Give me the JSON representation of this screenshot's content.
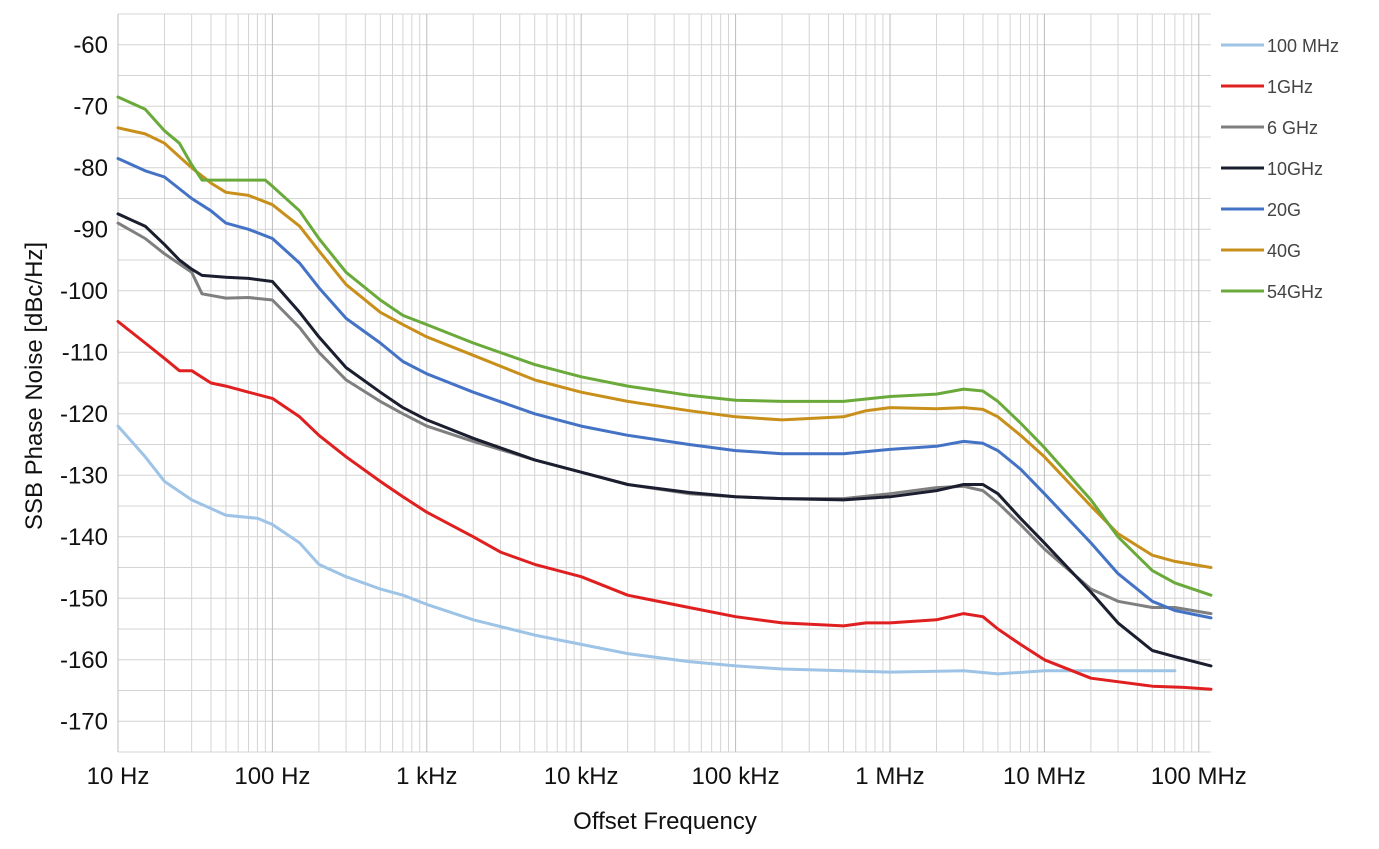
{
  "chart_data": {
    "type": "line",
    "title": "",
    "xlabel": "Offset Frequency",
    "ylabel": "SSB Phase Noise [dBc/Hz]",
    "x_scale": "log",
    "xlim": [
      10,
      120000000
    ],
    "ylim": [
      -175,
      -55
    ],
    "grid": true,
    "legend_position": "right",
    "y_ticks": [
      -60,
      -70,
      -80,
      -90,
      -100,
      -110,
      -120,
      -130,
      -140,
      -150,
      -160,
      -170
    ],
    "y_tick_labels": [
      "-60",
      "-70",
      "-80",
      "-90",
      "-100",
      "-110",
      "-120",
      "-130",
      "-140",
      "-150",
      "-160",
      "-170"
    ],
    "x_ticks": [
      10,
      100,
      1000,
      10000,
      100000,
      1000000,
      10000000,
      100000000
    ],
    "x_tick_labels": [
      "10 Hz",
      "100 Hz",
      "1 kHz",
      "10 kHz",
      "100 kHz",
      "1 MHz",
      "10 MHz",
      "100 MHz"
    ],
    "series": [
      {
        "name": "100 MHz",
        "color": "#9dc3e6",
        "points": [
          [
            10,
            -122
          ],
          [
            15,
            -127
          ],
          [
            20,
            -131
          ],
          [
            30,
            -134
          ],
          [
            50,
            -136.5
          ],
          [
            80,
            -137
          ],
          [
            100,
            -138
          ],
          [
            150,
            -141
          ],
          [
            200,
            -144.5
          ],
          [
            300,
            -146.5
          ],
          [
            500,
            -148.5
          ],
          [
            700,
            -149.5
          ],
          [
            1000,
            -151
          ],
          [
            2000,
            -153.5
          ],
          [
            5000,
            -156
          ],
          [
            10000,
            -157.5
          ],
          [
            20000,
            -159
          ],
          [
            50000,
            -160.3
          ],
          [
            100000,
            -161
          ],
          [
            200000,
            -161.5
          ],
          [
            500000,
            -161.8
          ],
          [
            1000000,
            -162
          ],
          [
            3000000,
            -161.8
          ],
          [
            5000000,
            -162.3
          ],
          [
            10000000,
            -161.8
          ],
          [
            20000000,
            -161.8
          ],
          [
            50000000,
            -161.8
          ],
          [
            70000000,
            -161.8
          ]
        ]
      },
      {
        "name": "1GHz",
        "color": "#e02020",
        "points": [
          [
            10,
            -105
          ],
          [
            15,
            -108.5
          ],
          [
            20,
            -111
          ],
          [
            25,
            -113
          ],
          [
            30,
            -113
          ],
          [
            40,
            -115
          ],
          [
            50,
            -115.5
          ],
          [
            70,
            -116.5
          ],
          [
            100,
            -117.5
          ],
          [
            150,
            -120.5
          ],
          [
            200,
            -123.5
          ],
          [
            300,
            -127
          ],
          [
            500,
            -131
          ],
          [
            700,
            -133.5
          ],
          [
            1000,
            -136
          ],
          [
            2000,
            -140
          ],
          [
            3000,
            -142.5
          ],
          [
            5000,
            -144.5
          ],
          [
            10000,
            -146.5
          ],
          [
            20000,
            -149.5
          ],
          [
            50000,
            -151.5
          ],
          [
            100000,
            -153
          ],
          [
            200000,
            -154
          ],
          [
            500000,
            -154.5
          ],
          [
            700000,
            -154
          ],
          [
            1000000,
            -154
          ],
          [
            2000000,
            -153.5
          ],
          [
            3000000,
            -152.5
          ],
          [
            4000000,
            -153
          ],
          [
            5000000,
            -155
          ],
          [
            7000000,
            -157.5
          ],
          [
            10000000,
            -160
          ],
          [
            20000000,
            -163
          ],
          [
            50000000,
            -164.3
          ],
          [
            80000000,
            -164.5
          ],
          [
            120000000,
            -164.8
          ]
        ]
      },
      {
        "name": "6 GHz",
        "color": "#7f7f7f",
        "points": [
          [
            10,
            -89
          ],
          [
            15,
            -91.5
          ],
          [
            20,
            -94
          ],
          [
            30,
            -97
          ],
          [
            35,
            -100.5
          ],
          [
            50,
            -101.2
          ],
          [
            70,
            -101.1
          ],
          [
            100,
            -101.5
          ],
          [
            150,
            -106
          ],
          [
            200,
            -110
          ],
          [
            300,
            -114.5
          ],
          [
            500,
            -118
          ],
          [
            700,
            -120
          ],
          [
            1000,
            -122
          ],
          [
            2000,
            -124.5
          ],
          [
            5000,
            -127.5
          ],
          [
            10000,
            -129.5
          ],
          [
            20000,
            -131.5
          ],
          [
            50000,
            -133
          ],
          [
            100000,
            -133.5
          ],
          [
            200000,
            -133.8
          ],
          [
            500000,
            -133.8
          ],
          [
            1000000,
            -133
          ],
          [
            2000000,
            -132
          ],
          [
            3000000,
            -131.8
          ],
          [
            4000000,
            -132.5
          ],
          [
            5000000,
            -134.5
          ],
          [
            7000000,
            -138
          ],
          [
            10000000,
            -142
          ],
          [
            20000000,
            -148.5
          ],
          [
            30000000,
            -150.5
          ],
          [
            50000000,
            -151.5
          ],
          [
            70000000,
            -151.5
          ],
          [
            120000000,
            -152.5
          ]
        ]
      },
      {
        "name": "10GHz",
        "color": "#1a1e2e",
        "points": [
          [
            10,
            -87.5
          ],
          [
            15,
            -89.5
          ],
          [
            20,
            -92.5
          ],
          [
            25,
            -95
          ],
          [
            30,
            -96.5
          ],
          [
            35,
            -97.5
          ],
          [
            50,
            -97.8
          ],
          [
            70,
            -98
          ],
          [
            100,
            -98.5
          ],
          [
            150,
            -103.5
          ],
          [
            200,
            -107.5
          ],
          [
            300,
            -112.5
          ],
          [
            500,
            -116.5
          ],
          [
            700,
            -119
          ],
          [
            1000,
            -121
          ],
          [
            2000,
            -124
          ],
          [
            5000,
            -127.5
          ],
          [
            10000,
            -129.5
          ],
          [
            20000,
            -131.5
          ],
          [
            50000,
            -132.8
          ],
          [
            100000,
            -133.5
          ],
          [
            200000,
            -133.8
          ],
          [
            500000,
            -134
          ],
          [
            1000000,
            -133.5
          ],
          [
            2000000,
            -132.5
          ],
          [
            3000000,
            -131.5
          ],
          [
            4000000,
            -131.5
          ],
          [
            5000000,
            -133
          ],
          [
            7000000,
            -137
          ],
          [
            10000000,
            -141
          ],
          [
            20000000,
            -149
          ],
          [
            30000000,
            -154
          ],
          [
            50000000,
            -158.5
          ],
          [
            70000000,
            -159.5
          ],
          [
            120000000,
            -161
          ]
        ]
      },
      {
        "name": "20G",
        "color": "#4472c4",
        "points": [
          [
            10,
            -78.5
          ],
          [
            15,
            -80.5
          ],
          [
            20,
            -81.5
          ],
          [
            30,
            -85
          ],
          [
            40,
            -87
          ],
          [
            50,
            -89
          ],
          [
            70,
            -90
          ],
          [
            100,
            -91.5
          ],
          [
            150,
            -95.5
          ],
          [
            200,
            -99.5
          ],
          [
            300,
            -104.5
          ],
          [
            500,
            -108.5
          ],
          [
            700,
            -111.5
          ],
          [
            1000,
            -113.5
          ],
          [
            2000,
            -116.5
          ],
          [
            5000,
            -120
          ],
          [
            10000,
            -122
          ],
          [
            20000,
            -123.5
          ],
          [
            50000,
            -125
          ],
          [
            100000,
            -126
          ],
          [
            200000,
            -126.5
          ],
          [
            500000,
            -126.5
          ],
          [
            1000000,
            -125.8
          ],
          [
            2000000,
            -125.3
          ],
          [
            3000000,
            -124.5
          ],
          [
            4000000,
            -124.8
          ],
          [
            5000000,
            -126
          ],
          [
            7000000,
            -129
          ],
          [
            10000000,
            -133
          ],
          [
            20000000,
            -141
          ],
          [
            30000000,
            -146
          ],
          [
            50000000,
            -150.5
          ],
          [
            70000000,
            -152
          ],
          [
            120000000,
            -153.2
          ]
        ]
      },
      {
        "name": "40G",
        "color": "#c8901a",
        "points": [
          [
            10,
            -73.5
          ],
          [
            15,
            -74.5
          ],
          [
            20,
            -76
          ],
          [
            30,
            -80
          ],
          [
            40,
            -82.5
          ],
          [
            50,
            -84
          ],
          [
            70,
            -84.5
          ],
          [
            100,
            -86
          ],
          [
            150,
            -89.5
          ],
          [
            200,
            -93.5
          ],
          [
            300,
            -99
          ],
          [
            500,
            -103.5
          ],
          [
            700,
            -105.5
          ],
          [
            1000,
            -107.5
          ],
          [
            2000,
            -110.5
          ],
          [
            5000,
            -114.5
          ],
          [
            10000,
            -116.5
          ],
          [
            20000,
            -118
          ],
          [
            50000,
            -119.5
          ],
          [
            100000,
            -120.5
          ],
          [
            200000,
            -121
          ],
          [
            500000,
            -120.5
          ],
          [
            700000,
            -119.5
          ],
          [
            1000000,
            -119
          ],
          [
            2000000,
            -119.2
          ],
          [
            3000000,
            -119
          ],
          [
            4000000,
            -119.3
          ],
          [
            5000000,
            -120.5
          ],
          [
            7000000,
            -123.5
          ],
          [
            10000000,
            -127
          ],
          [
            20000000,
            -135
          ],
          [
            30000000,
            -139.5
          ],
          [
            50000000,
            -143
          ],
          [
            70000000,
            -144
          ],
          [
            120000000,
            -145
          ]
        ]
      },
      {
        "name": "54GHz",
        "color": "#6aaa3a",
        "points": [
          [
            10,
            -68.5
          ],
          [
            15,
            -70.5
          ],
          [
            20,
            -74
          ],
          [
            25,
            -76
          ],
          [
            30,
            -79.5
          ],
          [
            35,
            -82
          ],
          [
            50,
            -82
          ],
          [
            70,
            -82
          ],
          [
            90,
            -82
          ],
          [
            100,
            -83
          ],
          [
            150,
            -87
          ],
          [
            200,
            -91.5
          ],
          [
            300,
            -97
          ],
          [
            500,
            -101.5
          ],
          [
            700,
            -104
          ],
          [
            1000,
            -105.5
          ],
          [
            2000,
            -108.5
          ],
          [
            5000,
            -112
          ],
          [
            10000,
            -114
          ],
          [
            20000,
            -115.5
          ],
          [
            50000,
            -117
          ],
          [
            100000,
            -117.8
          ],
          [
            200000,
            -118
          ],
          [
            500000,
            -118
          ],
          [
            1000000,
            -117.2
          ],
          [
            2000000,
            -116.8
          ],
          [
            3000000,
            -116
          ],
          [
            4000000,
            -116.3
          ],
          [
            5000000,
            -118
          ],
          [
            7000000,
            -121.5
          ],
          [
            10000000,
            -125.5
          ],
          [
            20000000,
            -134
          ],
          [
            30000000,
            -140
          ],
          [
            50000000,
            -145.5
          ],
          [
            70000000,
            -147.5
          ],
          [
            120000000,
            -149.5
          ]
        ]
      }
    ]
  }
}
